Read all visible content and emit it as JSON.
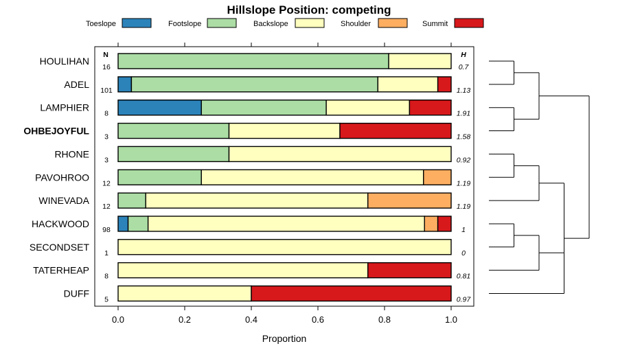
{
  "chart_data": {
    "type": "bar",
    "orientation": "horizontal",
    "stacked": true,
    "title": "Hillslope Position: competing",
    "xlabel": "Proportion",
    "ylabel": "",
    "xlim": [
      0,
      1
    ],
    "xticks": [
      "0.0",
      "0.2",
      "0.4",
      "0.6",
      "0.8",
      "1.0"
    ],
    "n_header": "N",
    "h_header": "H",
    "classes": [
      {
        "name": "Toeslope",
        "color": "#2b83ba"
      },
      {
        "name": "Footslope",
        "color": "#abdda4"
      },
      {
        "name": "Backslope",
        "color": "#ffffbf"
      },
      {
        "name": "Shoulder",
        "color": "#fdae61"
      },
      {
        "name": "Summit",
        "color": "#d7191c"
      }
    ],
    "rows": [
      {
        "label": "HOULIHAN",
        "bold": false,
        "n": "16",
        "h": "0.7",
        "values": [
          0,
          0.8125,
          0.1875,
          0,
          0
        ]
      },
      {
        "label": "ADEL",
        "bold": false,
        "n": "101",
        "h": "1.13",
        "values": [
          0.04,
          0.74,
          0.18,
          0,
          0.04
        ]
      },
      {
        "label": "LAMPHIER",
        "bold": false,
        "n": "8",
        "h": "1.91",
        "values": [
          0.25,
          0.375,
          0.25,
          0,
          0.125
        ]
      },
      {
        "label": "OHBEJOYFUL",
        "bold": true,
        "n": "3",
        "h": "1.58",
        "values": [
          0,
          0.333,
          0.333,
          0,
          0.334
        ]
      },
      {
        "label": "RHONE",
        "bold": false,
        "n": "3",
        "h": "0.92",
        "values": [
          0,
          0.333,
          0.667,
          0,
          0
        ]
      },
      {
        "label": "PAVOHROO",
        "bold": false,
        "n": "12",
        "h": "1.19",
        "values": [
          0,
          0.25,
          0.667,
          0.083,
          0
        ]
      },
      {
        "label": "WINEVADA",
        "bold": false,
        "n": "12",
        "h": "1.19",
        "values": [
          0,
          0.083,
          0.667,
          0.25,
          0
        ]
      },
      {
        "label": "HACKWOOD",
        "bold": false,
        "n": "98",
        "h": "1",
        "values": [
          0.03,
          0.06,
          0.83,
          0.04,
          0.04
        ]
      },
      {
        "label": "SECONDSET",
        "bold": false,
        "n": "1",
        "h": "0",
        "values": [
          0,
          0,
          1,
          0,
          0
        ]
      },
      {
        "label": "TATERHEAP",
        "bold": false,
        "n": "8",
        "h": "0.81",
        "values": [
          0,
          0,
          0.75,
          0,
          0.25
        ]
      },
      {
        "label": "DUFF",
        "bold": false,
        "n": "5",
        "h": "0.97",
        "values": [
          0,
          0,
          0.4,
          0,
          0.6
        ]
      }
    ],
    "dendrogram": "((HOULIHAN,ADEL),(LAMPHIER,OHBEJOYFUL)),(((RHONE,PAVOHROO),WINEVADA),((HACKWOOD,SECONDSET),TATERHEAP),DUFF)"
  }
}
